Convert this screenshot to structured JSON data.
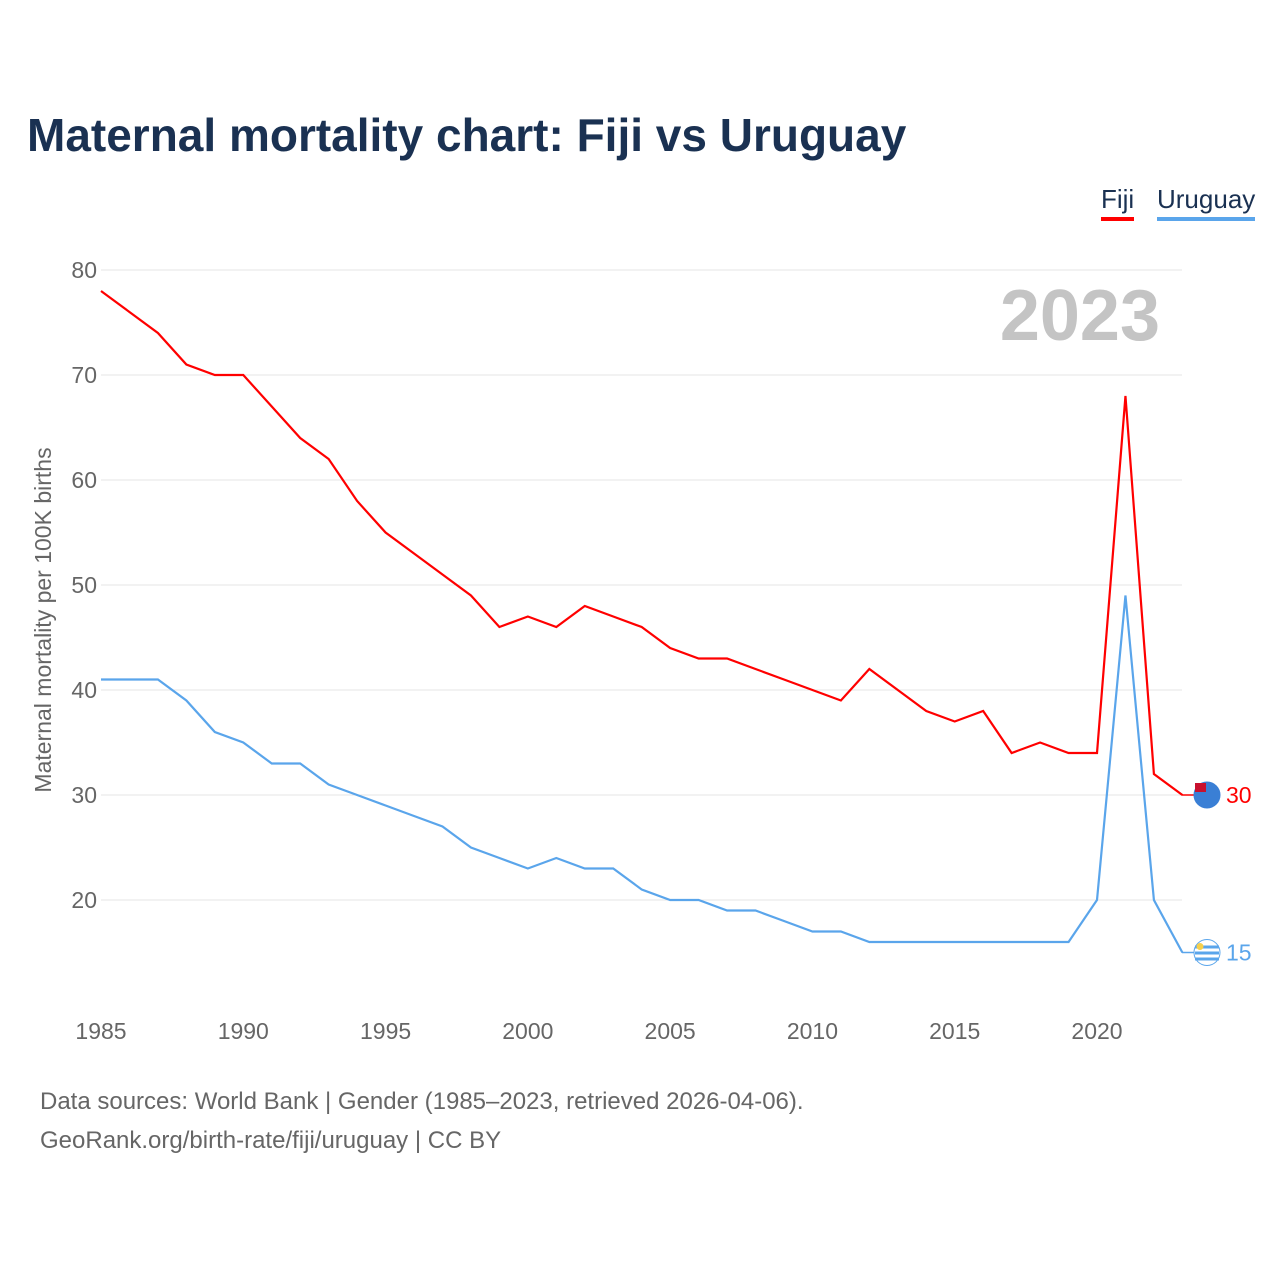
{
  "chart_data": {
    "type": "line",
    "title": "Maternal mortality chart: Fiji vs Uruguay",
    "ylabel": "Maternal mortality per 100K births",
    "xlabel": "",
    "year_label": "2023",
    "xlim": [
      1985,
      2023
    ],
    "ylim": [
      10,
      80
    ],
    "x_ticks": [
      1985,
      1990,
      1995,
      2000,
      2005,
      2010,
      2015,
      2020
    ],
    "y_ticks": [
      20,
      30,
      40,
      50,
      60,
      70,
      80
    ],
    "grid": true,
    "legend_position": "top-right",
    "x": [
      1985,
      1986,
      1987,
      1988,
      1989,
      1990,
      1991,
      1992,
      1993,
      1994,
      1995,
      1996,
      1997,
      1998,
      1999,
      2000,
      2001,
      2002,
      2003,
      2004,
      2005,
      2006,
      2007,
      2008,
      2009,
      2010,
      2011,
      2012,
      2013,
      2014,
      2015,
      2016,
      2017,
      2018,
      2019,
      2020,
      2021,
      2022,
      2023
    ],
    "series": [
      {
        "name": "Fiji",
        "color": "#ff0000",
        "end_label": "30",
        "values": [
          78,
          76,
          74,
          71,
          70,
          70,
          67,
          64,
          62,
          58,
          55,
          53,
          51,
          49,
          46,
          47,
          46,
          48,
          47,
          46,
          44,
          43,
          43,
          42,
          41,
          40,
          39,
          42,
          40,
          38,
          37,
          38,
          34,
          35,
          34,
          34,
          68,
          32,
          30
        ]
      },
      {
        "name": "Uruguay",
        "color": "#5aa5eb",
        "end_label": "15",
        "values": [
          41,
          41,
          41,
          39,
          36,
          35,
          33,
          33,
          31,
          30,
          29,
          28,
          27,
          25,
          24,
          23,
          24,
          23,
          23,
          21,
          20,
          20,
          19,
          19,
          18,
          17,
          17,
          16,
          16,
          16,
          16,
          16,
          16,
          16,
          16,
          20,
          49,
          20,
          15
        ]
      }
    ]
  },
  "footer": {
    "line1": "Data sources: World Bank | Gender (1985–2023, retrieved 2026-04-06).",
    "line2": "GeoRank.org/birth-rate/fiji/uruguay | CC BY"
  }
}
